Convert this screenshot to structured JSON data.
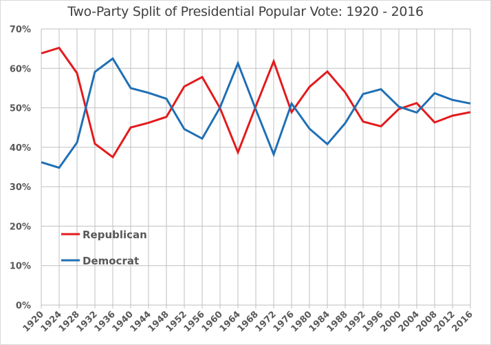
{
  "chart_data": {
    "type": "line",
    "title": "Two-Party Split of Presidential Popular Vote: 1920 - 2016",
    "xlabel": "",
    "ylabel": "",
    "x": [
      1920,
      1924,
      1928,
      1932,
      1936,
      1940,
      1944,
      1948,
      1952,
      1956,
      1960,
      1964,
      1968,
      1972,
      1976,
      1980,
      1984,
      1988,
      1992,
      1996,
      2000,
      2004,
      2008,
      2012,
      2016
    ],
    "x_tick_labels": [
      "1920",
      "1924",
      "1928",
      "1932",
      "1936",
      "1940",
      "1944",
      "1948",
      "1952",
      "1956",
      "1960",
      "1964",
      "1968",
      "1972",
      "1976",
      "1980",
      "1984",
      "1988",
      "1992",
      "1996",
      "2000",
      "2004",
      "2008",
      "2012",
      "2016"
    ],
    "ylim": [
      0,
      70
    ],
    "y_ticks": [
      0,
      10,
      20,
      30,
      40,
      50,
      60,
      70
    ],
    "y_tick_labels": [
      "0%",
      "10%",
      "20%",
      "30%",
      "40%",
      "50%",
      "60%",
      "70%"
    ],
    "grid": true,
    "legend_position": "lower-left",
    "series": [
      {
        "name": "Republican",
        "color": "#e31a1c",
        "values": [
          63.8,
          65.2,
          58.8,
          40.9,
          37.5,
          45.0,
          46.2,
          47.7,
          55.4,
          57.8,
          49.9,
          38.7,
          50.4,
          61.8,
          48.9,
          55.3,
          59.2,
          53.9,
          46.5,
          45.3,
          49.7,
          51.2,
          46.3,
          48.0,
          48.9
        ]
      },
      {
        "name": "Democrat",
        "color": "#1f6fb5",
        "values": [
          36.2,
          34.8,
          41.2,
          59.1,
          62.5,
          55.0,
          53.8,
          52.3,
          44.6,
          42.2,
          50.1,
          61.3,
          49.6,
          38.2,
          51.1,
          44.7,
          40.8,
          46.1,
          53.5,
          54.7,
          50.3,
          48.8,
          53.7,
          52.0,
          51.1
        ]
      }
    ]
  }
}
